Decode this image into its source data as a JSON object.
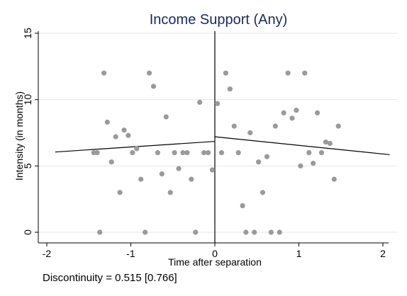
{
  "chart_data": {
    "type": "scatter",
    "title": "Income Support (Any)",
    "xlabel": "Time after separation",
    "ylabel": "Intensity (in months)",
    "xlim": [
      -2,
      2
    ],
    "ylim": [
      0,
      15
    ],
    "x_ticks": [
      -2,
      -1,
      0,
      1,
      2
    ],
    "y_ticks": [
      0,
      5,
      10,
      15
    ],
    "x_tick_labels": [
      "-2",
      "-1",
      "0",
      "1",
      "2"
    ],
    "y_tick_labels": [
      "0",
      "5",
      "10",
      "15"
    ],
    "grid": "horizontal",
    "cutoff_x": 0,
    "points": [
      {
        "x": -1.44,
        "y": 6.0
      },
      {
        "x": -1.4,
        "y": 6.0
      },
      {
        "x": -1.37,
        "y": 0.0
      },
      {
        "x": -1.32,
        "y": 12.0
      },
      {
        "x": -1.28,
        "y": 8.3
      },
      {
        "x": -1.23,
        "y": 5.3
      },
      {
        "x": -1.18,
        "y": 7.2
      },
      {
        "x": -1.13,
        "y": 3.0
      },
      {
        "x": -1.08,
        "y": 7.7
      },
      {
        "x": -1.03,
        "y": 7.3
      },
      {
        "x": -0.98,
        "y": 6.0
      },
      {
        "x": -0.93,
        "y": 6.3
      },
      {
        "x": -0.88,
        "y": 4.0
      },
      {
        "x": -0.83,
        "y": 0.0
      },
      {
        "x": -0.78,
        "y": 12.0
      },
      {
        "x": -0.73,
        "y": 11.0
      },
      {
        "x": -0.68,
        "y": 6.0
      },
      {
        "x": -0.63,
        "y": 4.4
      },
      {
        "x": -0.58,
        "y": 8.7
      },
      {
        "x": -0.53,
        "y": 3.0
      },
      {
        "x": -0.48,
        "y": 6.0
      },
      {
        "x": -0.43,
        "y": 4.8
      },
      {
        "x": -0.38,
        "y": 6.0
      },
      {
        "x": -0.33,
        "y": 6.0
      },
      {
        "x": -0.28,
        "y": 4.0
      },
      {
        "x": -0.23,
        "y": 0.0
      },
      {
        "x": -0.18,
        "y": 9.8
      },
      {
        "x": -0.13,
        "y": 6.0
      },
      {
        "x": -0.08,
        "y": 6.0
      },
      {
        "x": -0.03,
        "y": 4.7
      },
      {
        "x": 0.03,
        "y": 9.7
      },
      {
        "x": 0.08,
        "y": 6.0
      },
      {
        "x": 0.13,
        "y": 12.0
      },
      {
        "x": 0.18,
        "y": 10.8
      },
      {
        "x": 0.23,
        "y": 8.0
      },
      {
        "x": 0.28,
        "y": 6.0
      },
      {
        "x": 0.33,
        "y": 2.0
      },
      {
        "x": 0.37,
        "y": 0.0
      },
      {
        "x": 0.42,
        "y": 7.5
      },
      {
        "x": 0.47,
        "y": 0.0
      },
      {
        "x": 0.52,
        "y": 5.3
      },
      {
        "x": 0.57,
        "y": 3.0
      },
      {
        "x": 0.62,
        "y": 5.7
      },
      {
        "x": 0.67,
        "y": 0.0
      },
      {
        "x": 0.72,
        "y": 8.0
      },
      {
        "x": 0.77,
        "y": 0.0
      },
      {
        "x": 0.82,
        "y": 9.0
      },
      {
        "x": 0.87,
        "y": 12.0
      },
      {
        "x": 0.92,
        "y": 8.6
      },
      {
        "x": 0.97,
        "y": 9.2
      },
      {
        "x": 1.02,
        "y": 5.0
      },
      {
        "x": 1.07,
        "y": 12.0
      },
      {
        "x": 1.12,
        "y": 6.0
      },
      {
        "x": 1.17,
        "y": 5.2
      },
      {
        "x": 1.22,
        "y": 9.0
      },
      {
        "x": 1.27,
        "y": 6.0
      },
      {
        "x": 1.32,
        "y": 6.8
      },
      {
        "x": 1.37,
        "y": 6.7
      },
      {
        "x": 1.42,
        "y": 4.0
      },
      {
        "x": 1.47,
        "y": 8.0
      }
    ],
    "fit_lines": [
      {
        "x": [
          -1.9,
          0.0
        ],
        "y": [
          6.05,
          6.85
        ]
      },
      {
        "x": [
          0.0,
          2.08
        ],
        "y": [
          7.2,
          5.85
        ]
      }
    ],
    "colors": {
      "title": "#1a2a5a",
      "points": "#9a9a9a",
      "fit_line": "#000000",
      "grid": "#e6e6e6"
    }
  },
  "note": "Discontinuity = 0.515 [0.766]"
}
